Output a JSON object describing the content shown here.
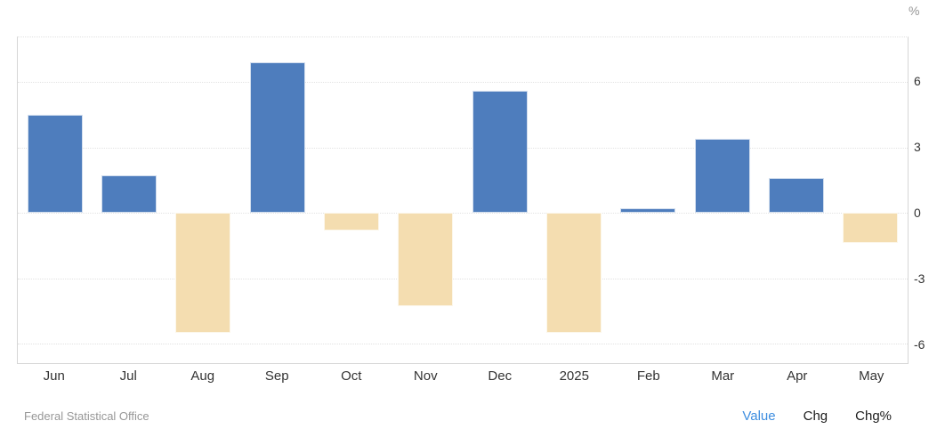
{
  "unit_label": "%",
  "footer": {
    "source": "Federal Statistical Office",
    "links": [
      {
        "label": "Value",
        "active": true
      },
      {
        "label": "Chg",
        "active": false
      },
      {
        "label": "Chg%",
        "active": false
      }
    ]
  },
  "colors": {
    "positive": "#4e7dbd",
    "negative": "#f4ddb0",
    "grid": "#e2e2e2",
    "axis_border": "#d6d6d6",
    "label": "#333333",
    "muted": "#979797",
    "link": "#1c1c1c",
    "link_active": "#3e8ee0"
  },
  "chart_data": {
    "type": "bar",
    "title": "",
    "xlabel": "",
    "ylabel": "%",
    "categories": [
      "Jun",
      "Jul",
      "Aug",
      "Sep",
      "Oct",
      "Nov",
      "Dec",
      "2025",
      "Feb",
      "Mar",
      "Apr",
      "May"
    ],
    "values": [
      4.5,
      1.7,
      -5.5,
      6.9,
      -0.8,
      -4.3,
      5.6,
      -5.5,
      0.2,
      3.4,
      1.6,
      -1.4
    ],
    "ylim": [
      -6.9,
      8.05
    ],
    "yticks": [
      6,
      3,
      0,
      -3,
      -6
    ],
    "grid": "dotted-horizontal",
    "legend": "none",
    "y_axis_side": "right",
    "positive_color": "#4e7dbd",
    "negative_color": "#f4ddb0"
  }
}
